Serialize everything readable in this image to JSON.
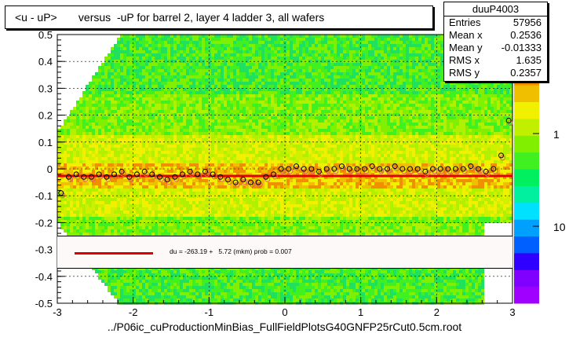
{
  "title": "<u - uP>       versus  -uP for barrel 2, layer 4 ladder 3, all wafers",
  "stats": {
    "name": "duuP4003",
    "entries_label": "Entries",
    "entries": "57956",
    "meanx_label": "Mean x",
    "meanx": "0.2536",
    "meany_label": "Mean y",
    "meany": "-0.01333",
    "rmsx_label": "RMS x",
    "rmsx": "1.635",
    "rmsy_label": "RMS y",
    "rmsy": "0.2357"
  },
  "legend": {
    "text": "du = -263.19 +   5.72 (mkm) prob = 0.007"
  },
  "footer": "../P06ic_cuProductionMinBias_FullFieldPlotsG40GNFP25rCut0.5cm.root",
  "colors": {
    "fit": "#e00000",
    "points_black": "#000000",
    "points_open": "#e06060"
  },
  "chart_data": {
    "type": "heatmap",
    "xlim": [
      -3,
      3
    ],
    "ylim": [
      -0.5,
      0.5
    ],
    "x_ticks": [
      "-3",
      "-2",
      "-1",
      "0",
      "1",
      "2",
      "3"
    ],
    "y_ticks": [
      "-0.5",
      "-0.4",
      "-0.3",
      "-0.2",
      "-0.1",
      "0",
      "0.1",
      "0.2",
      "0.3",
      "0.4",
      "0.5"
    ],
    "z_ticks": [
      "1",
      "10"
    ],
    "z_tick_labels": [
      "1",
      "10"
    ],
    "grid": true,
    "fit_line": {
      "x": [
        -3,
        3
      ],
      "y": [
        -0.0263,
        -0.0263
      ]
    },
    "profile_points": {
      "x": [
        -2.95,
        -2.85,
        -2.75,
        -2.65,
        -2.55,
        -2.45,
        -2.35,
        -2.25,
        -2.15,
        -2.05,
        -1.95,
        -1.85,
        -1.75,
        -1.65,
        -1.55,
        -1.45,
        -1.35,
        -1.25,
        -1.15,
        -1.05,
        -0.95,
        -0.85,
        -0.75,
        -0.65,
        -0.55,
        -0.45,
        -0.35,
        -0.25,
        -0.15,
        -0.05,
        0.05,
        0.15,
        0.25,
        0.35,
        0.45,
        0.55,
        0.65,
        0.75,
        0.85,
        0.95,
        1.05,
        1.15,
        1.25,
        1.35,
        1.45,
        1.55,
        1.65,
        1.75,
        1.85,
        1.95,
        2.05,
        2.15,
        2.25,
        2.35,
        2.45,
        2.55,
        2.65,
        2.75,
        2.85,
        2.95
      ],
      "y": [
        -0.09,
        -0.03,
        -0.02,
        -0.03,
        -0.03,
        -0.02,
        -0.03,
        -0.02,
        -0.01,
        -0.03,
        -0.02,
        -0.01,
        -0.02,
        -0.03,
        -0.04,
        -0.03,
        -0.02,
        -0.01,
        -0.02,
        -0.01,
        -0.02,
        -0.03,
        -0.04,
        -0.05,
        -0.04,
        -0.05,
        -0.05,
        -0.03,
        -0.02,
        0.0,
        0.0,
        0.01,
        0.0,
        0.0,
        -0.01,
        0.0,
        0.0,
        0.01,
        0.0,
        0.0,
        0.0,
        0.01,
        0.0,
        0.0,
        0.01,
        0.0,
        0.0,
        0.0,
        -0.01,
        0.0,
        0.0,
        0.0,
        0.0,
        0.0,
        0.01,
        0.0,
        -0.01,
        0.0,
        0.05,
        0.18
      ]
    }
  }
}
